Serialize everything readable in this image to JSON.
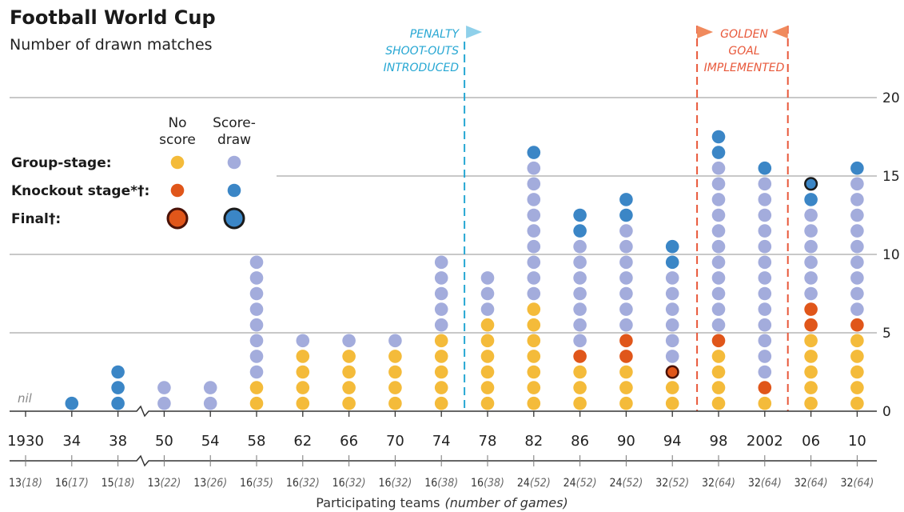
{
  "header": {
    "title": "Football World Cup",
    "subtitle": "Number of drawn matches"
  },
  "legend": {
    "col_no_score": [
      "No",
      "score"
    ],
    "col_score_draw": [
      "Score-",
      "draw"
    ],
    "rows": [
      "Group-stage:",
      "Knockout stage*†:",
      "Final†:"
    ]
  },
  "annotations": {
    "penalty": [
      "PENALTY",
      "SHOOT-OUTS",
      "INTRODUCED"
    ],
    "golden": [
      "GOLDEN",
      "GOAL",
      "IMPLEMENTED"
    ]
  },
  "colors": {
    "group_no_score": "#f4bb3a",
    "group_score_draw": "#a3acdc",
    "knockout_no_score": "#e0561a",
    "knockout_score_draw": "#3b86c6",
    "final_outline": "#1a1a1a",
    "penalty_line": "#27a7d3",
    "golden_line": "#e8583a",
    "grid": "#c8c8c8"
  },
  "axis": {
    "x_title_main": "Participating teams",
    "x_title_italic": "(number of games)",
    "nil_label": "nil"
  },
  "chart_data": {
    "type": "dot-stack",
    "title": "Football World Cup",
    "subtitle": "Number of drawn matches",
    "ylim": [
      0,
      20
    ],
    "yticks": [
      0,
      5,
      10,
      15,
      20
    ],
    "categories": [
      "1930",
      "34",
      "38",
      "50",
      "54",
      "58",
      "62",
      "66",
      "70",
      "74",
      "78",
      "82",
      "86",
      "90",
      "94",
      "98",
      "2002",
      "06",
      "10"
    ],
    "teams": [
      "13",
      "16",
      "15",
      "13",
      "13",
      "16",
      "16",
      "16",
      "16",
      "16",
      "16",
      "24",
      "24",
      "24",
      "32",
      "32",
      "32",
      "32",
      "32"
    ],
    "games": [
      "(18)",
      "(17)",
      "(18)",
      "(22)",
      "(26)",
      "(35)",
      "(32)",
      "(32)",
      "(32)",
      "(38)",
      "(38)",
      "(52)",
      "(52)",
      "(52)",
      "(52)",
      "(64)",
      "(64)",
      "(64)",
      "(64)"
    ],
    "series": [
      {
        "name": "Group-stage no score",
        "values": [
          0,
          0,
          0,
          0,
          0,
          2,
          4,
          4,
          4,
          5,
          6,
          7,
          3,
          3,
          2,
          4,
          1,
          5,
          5
        ]
      },
      {
        "name": "Group-stage score-draw",
        "values": [
          0,
          0,
          0,
          2,
          2,
          8,
          1,
          1,
          1,
          5,
          3,
          9,
          7,
          7,
          6,
          11,
          13,
          6,
          9
        ]
      },
      {
        "name": "Knockout stage no score",
        "values": [
          0,
          0,
          0,
          0,
          0,
          0,
          0,
          0,
          0,
          0,
          0,
          0,
          1,
          2,
          0,
          1,
          1,
          2,
          1
        ]
      },
      {
        "name": "Knockout stage score-draw",
        "values": [
          0,
          1,
          3,
          0,
          0,
          0,
          0,
          0,
          0,
          0,
          0,
          1,
          2,
          2,
          2,
          2,
          1,
          1,
          1
        ]
      },
      {
        "name": "Final no score",
        "values": [
          0,
          0,
          0,
          0,
          0,
          0,
          0,
          0,
          0,
          0,
          0,
          0,
          0,
          0,
          1,
          0,
          0,
          0,
          0
        ]
      },
      {
        "name": "Final score-draw",
        "values": [
          0,
          0,
          0,
          0,
          0,
          0,
          0,
          0,
          0,
          0,
          0,
          0,
          0,
          0,
          0,
          0,
          0,
          1,
          0
        ]
      }
    ],
    "stack_order": {
      "1994": [
        "gns",
        "gns",
        "fns",
        "gsd",
        "gsd",
        "gsd",
        "gsd",
        "gsd",
        "gsd",
        "ksd",
        "ksd"
      ],
      "2006": [
        "gns",
        "gns",
        "gns",
        "gns",
        "gns",
        "kns",
        "kns",
        "gsd",
        "gsd",
        "gsd",
        "gsd",
        "gsd",
        "gsd",
        "ksd",
        "fsd"
      ]
    },
    "annotations": [
      {
        "text": "PENALTY SHOOT-OUTS INTRODUCED",
        "between": [
          "74",
          "78"
        ]
      },
      {
        "text": "GOLDEN GOAL IMPLEMENTED",
        "between": [
          "94",
          "2002"
        ]
      }
    ]
  }
}
